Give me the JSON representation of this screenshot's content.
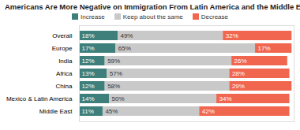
{
  "chart_data": {
    "type": "bar",
    "title": "Americans Are More Negative on Immigration From Latin America and the Middle East",
    "orientation": "horizontal",
    "stacked": true,
    "data_labels": true,
    "tick_labels": "y",
    "legend": "top",
    "categories": [
      "Overall",
      "Europe",
      "India",
      "Africa",
      "China",
      "Mexico & Latin America",
      "Middle East"
    ],
    "xlim": [
      0,
      100
    ],
    "series": [
      {
        "name": "Increase",
        "color": "#3e7f7b",
        "values": [
          18,
          17,
          12,
          13,
          12,
          14,
          11
        ],
        "value_labels": [
          "18%",
          "17%",
          "12%",
          "13%",
          "12%",
          "14%",
          "11%"
        ]
      },
      {
        "name": "Keep about the same",
        "color": "#c9c9c9",
        "values": [
          49,
          65,
          59,
          57,
          58,
          50,
          45
        ],
        "value_labels": [
          "49%",
          "65%",
          "59%",
          "57%",
          "58%",
          "50%",
          "45%"
        ]
      },
      {
        "name": "Decrease",
        "color": "#f0664f",
        "values": [
          32,
          17,
          26,
          28,
          29,
          34,
          42
        ],
        "value_labels": [
          "32%",
          "17%",
          "26%",
          "28%",
          "29%",
          "34%",
          "42%"
        ]
      }
    ]
  }
}
